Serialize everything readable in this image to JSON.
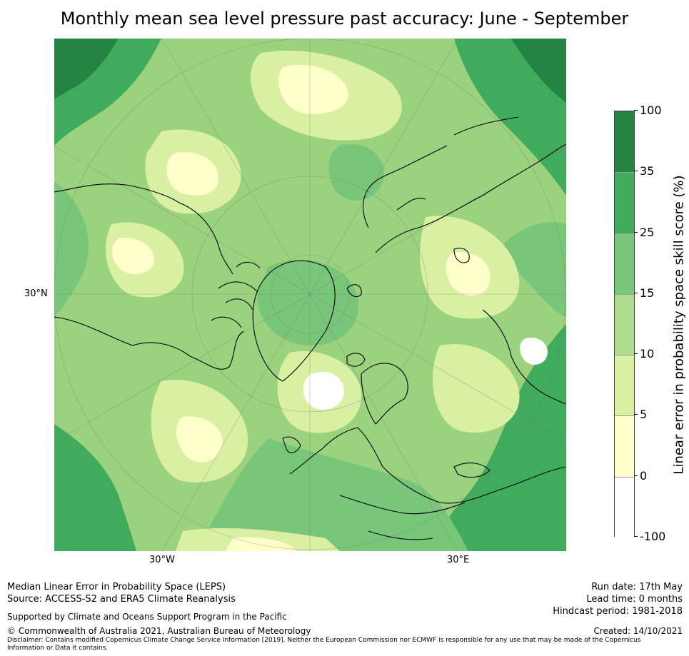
{
  "title": "Monthly mean sea level pressure past accuracy: June - September",
  "map": {
    "projection": "north-polar-stereographic",
    "lat_label": "30°N",
    "lon_labels": [
      "30°W",
      "30°E"
    ],
    "background_color": "#9bd27e",
    "coastline_color": "#000000",
    "graticule_color": "#7a7a7a"
  },
  "colorbar": {
    "label": "Linear error in probability space skill score (%)",
    "ticks": [
      "100",
      "35",
      "25",
      "15",
      "10",
      "5",
      "0",
      "-100"
    ],
    "colors": [
      "#238443",
      "#41ab5d",
      "#78c679",
      "#addd8e",
      "#d9f0a3",
      "#ffffcc",
      "#ffffff"
    ]
  },
  "footer": {
    "left_line1": "Median Linear Error in Probability Space (LEPS)",
    "left_line2": "Source: ACCESS-S2 and ERA5 Climate Reanalysis",
    "support": "Supported by Climate and Oceans Support Program in the Pacific",
    "copyright": "© Commonwealth of Australia 2021, Australian Bureau of Meteorology",
    "disclaimer": "Disclaimer: Contains modified Copernicus Climate Change Service Information [2019]. Neither the European Commission nor ECMWF is responsible for any use that may be made of the Copernicus Information or Data it contains.",
    "run_date": "Run date: 17th May",
    "lead_time": "Lead time: 0 months",
    "hindcast": "Hindcast period: 1981-2018",
    "created": "Created: 14/10/2021"
  }
}
